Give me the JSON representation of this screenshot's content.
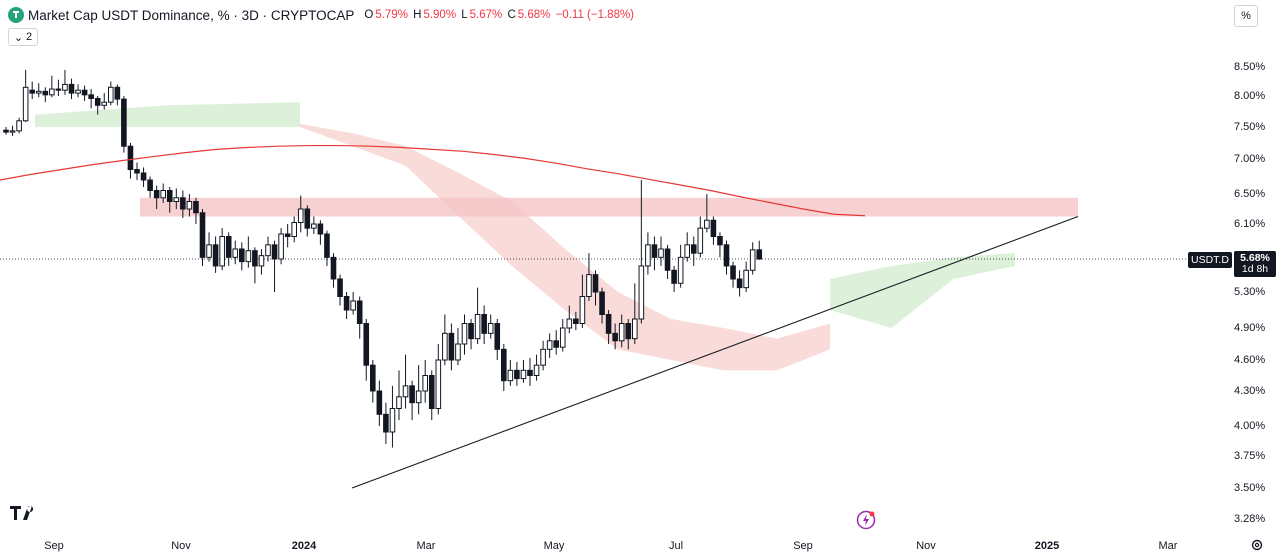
{
  "header": {
    "title": "Market Cap USDT Dominance, % · 3D · CRYPTOCAP",
    "open_label": "O",
    "open_value": "5.79%",
    "high_label": "H",
    "high_value": "5.90%",
    "low_label": "L",
    "low_value": "5.67%",
    "close_label": "C",
    "close_value": "5.68%",
    "change_value": "−0.11 (−1.88%)",
    "collapse_count": "2",
    "percent_button": "%"
  },
  "price_tag": {
    "symbol": "USDT.D",
    "value": "5.68%",
    "countdown": "1d 8h"
  },
  "colors": {
    "up": "#131722",
    "down": "#131722",
    "ma": "#e53935",
    "cloud_bear": "#f8d5d2",
    "cloud_bull": "#d7eed4",
    "zone": "#f5c6c6",
    "tag": "#131722"
  },
  "chart_data": {
    "type": "candlestick",
    "y_ticks": [
      "8.50%",
      "8.00%",
      "7.50%",
      "7.00%",
      "6.50%",
      "6.10%",
      "5.30%",
      "4.90%",
      "4.60%",
      "4.30%",
      "4.00%",
      "3.75%",
      "3.50%",
      "3.28%"
    ],
    "x_ticks": [
      {
        "label": "Sep",
        "bold": false
      },
      {
        "label": "Nov",
        "bold": false
      },
      {
        "label": "2024",
        "bold": true
      },
      {
        "label": "Mar",
        "bold": false
      },
      {
        "label": "May",
        "bold": false
      },
      {
        "label": "Jul",
        "bold": false
      },
      {
        "label": "Sep",
        "bold": false
      },
      {
        "label": "Nov",
        "bold": false
      },
      {
        "label": "2025",
        "bold": true
      },
      {
        "label": "Mar",
        "bold": false
      }
    ],
    "last_close": 5.68,
    "resistance_zone": [
      6.2,
      6.45
    ],
    "candles": [
      [
        7.45,
        7.42,
        7.5,
        7.38
      ],
      [
        7.42,
        7.44,
        7.52,
        7.36
      ],
      [
        7.44,
        7.6,
        7.65,
        7.4
      ],
      [
        7.6,
        8.15,
        8.45,
        7.58
      ],
      [
        8.1,
        8.05,
        8.25,
        7.95
      ],
      [
        8.05,
        8.08,
        8.22,
        7.98
      ],
      [
        8.08,
        8.02,
        8.15,
        7.9
      ],
      [
        8.02,
        8.12,
        8.35,
        7.98
      ],
      [
        8.12,
        8.1,
        8.28,
        8.0
      ],
      [
        8.1,
        8.2,
        8.45,
        8.02
      ],
      [
        8.2,
        8.05,
        8.3,
        7.95
      ],
      [
        8.05,
        8.1,
        8.2,
        7.98
      ],
      [
        8.1,
        8.02,
        8.18,
        7.92
      ],
      [
        8.02,
        7.96,
        8.12,
        7.8
      ],
      [
        7.96,
        7.85,
        8.0,
        7.7
      ],
      [
        7.85,
        7.9,
        8.05,
        7.78
      ],
      [
        7.9,
        8.15,
        8.25,
        7.85
      ],
      [
        8.15,
        7.95,
        8.2,
        7.85
      ],
      [
        7.95,
        7.2,
        8.0,
        7.1
      ],
      [
        7.2,
        6.85,
        7.25,
        6.72
      ],
      [
        6.85,
        6.8,
        6.95,
        6.7
      ],
      [
        6.8,
        6.7,
        6.88,
        6.6
      ],
      [
        6.7,
        6.55,
        6.75,
        6.45
      ],
      [
        6.55,
        6.45,
        6.62,
        6.3
      ],
      [
        6.45,
        6.55,
        6.65,
        6.38
      ],
      [
        6.55,
        6.4,
        6.6,
        6.25
      ],
      [
        6.4,
        6.45,
        6.58,
        6.3
      ],
      [
        6.45,
        6.3,
        6.55,
        6.18
      ],
      [
        6.3,
        6.4,
        6.5,
        6.2
      ],
      [
        6.4,
        6.25,
        6.45,
        6.1
      ],
      [
        6.25,
        5.7,
        6.3,
        5.6
      ],
      [
        5.7,
        5.85,
        6.0,
        5.65
      ],
      [
        5.85,
        5.6,
        5.95,
        5.52
      ],
      [
        5.6,
        5.95,
        6.05,
        5.55
      ],
      [
        5.95,
        5.7,
        6.0,
        5.6
      ],
      [
        5.7,
        5.8,
        5.9,
        5.62
      ],
      [
        5.8,
        5.65,
        5.88,
        5.55
      ],
      [
        5.65,
        5.78,
        5.95,
        5.58
      ],
      [
        5.78,
        5.6,
        5.82,
        5.4
      ],
      [
        5.6,
        5.72,
        5.8,
        5.5
      ],
      [
        5.72,
        5.85,
        5.95,
        5.65
      ],
      [
        5.85,
        5.68,
        5.9,
        5.3
      ],
      [
        5.68,
        5.98,
        6.05,
        5.62
      ],
      [
        5.98,
        5.95,
        6.1,
        5.82
      ],
      [
        5.95,
        6.12,
        6.2,
        5.88
      ],
      [
        6.12,
        6.3,
        6.48,
        6.0
      ],
      [
        6.3,
        6.05,
        6.35,
        5.95
      ],
      [
        6.05,
        6.1,
        6.2,
        5.98
      ],
      [
        6.1,
        5.98,
        6.15,
        5.85
      ],
      [
        5.98,
        5.7,
        6.02,
        5.6
      ],
      [
        5.7,
        5.45,
        5.75,
        5.35
      ],
      [
        5.45,
        5.25,
        5.5,
        5.15
      ],
      [
        5.25,
        5.1,
        5.3,
        5.0
      ],
      [
        5.1,
        5.2,
        5.3,
        5.05
      ],
      [
        5.2,
        4.95,
        5.25,
        4.8
      ],
      [
        4.95,
        4.55,
        5.0,
        4.4
      ],
      [
        4.55,
        4.3,
        4.6,
        4.2
      ],
      [
        4.3,
        4.1,
        4.4,
        4.0
      ],
      [
        4.1,
        3.95,
        4.2,
        3.85
      ],
      [
        3.95,
        4.15,
        4.35,
        3.82
      ],
      [
        4.15,
        4.25,
        4.5,
        4.05
      ],
      [
        4.25,
        4.35,
        4.65,
        4.15
      ],
      [
        4.35,
        4.2,
        4.4,
        4.05
      ],
      [
        4.2,
        4.3,
        4.55,
        4.1
      ],
      [
        4.3,
        4.45,
        4.6,
        4.2
      ],
      [
        4.45,
        4.15,
        4.5,
        4.05
      ],
      [
        4.15,
        4.6,
        4.75,
        4.1
      ],
      [
        4.6,
        4.85,
        5.05,
        4.55
      ],
      [
        4.85,
        4.6,
        4.95,
        4.5
      ],
      [
        4.6,
        4.75,
        4.9,
        4.55
      ],
      [
        4.75,
        4.95,
        5.05,
        4.65
      ],
      [
        4.95,
        4.8,
        5.0,
        4.7
      ],
      [
        4.8,
        5.05,
        5.35,
        4.75
      ],
      [
        5.05,
        4.85,
        5.15,
        4.75
      ],
      [
        4.85,
        4.95,
        5.05,
        4.8
      ],
      [
        4.95,
        4.7,
        5.0,
        4.6
      ],
      [
        4.7,
        4.4,
        4.75,
        4.3
      ],
      [
        4.4,
        4.5,
        4.6,
        4.35
      ],
      [
        4.5,
        4.42,
        4.58,
        4.35
      ],
      [
        4.42,
        4.5,
        4.6,
        4.38
      ],
      [
        4.5,
        4.45,
        4.62,
        4.35
      ],
      [
        4.45,
        4.55,
        4.65,
        4.4
      ],
      [
        4.55,
        4.7,
        4.78,
        4.5
      ],
      [
        4.7,
        4.78,
        4.85,
        4.62
      ],
      [
        4.78,
        4.72,
        4.88,
        4.65
      ],
      [
        4.72,
        4.9,
        5.0,
        4.68
      ],
      [
        4.9,
        5.0,
        5.15,
        4.85
      ],
      [
        5.0,
        4.95,
        5.08,
        4.88
      ],
      [
        4.95,
        5.25,
        5.5,
        4.9
      ],
      [
        5.25,
        5.5,
        5.75,
        5.2
      ],
      [
        5.5,
        5.3,
        5.55,
        5.15
      ],
      [
        5.3,
        5.05,
        5.35,
        4.95
      ],
      [
        5.05,
        4.85,
        5.1,
        4.75
      ],
      [
        4.85,
        4.78,
        4.95,
        4.7
      ],
      [
        4.78,
        4.95,
        5.05,
        4.72
      ],
      [
        4.95,
        4.8,
        5.0,
        4.7
      ],
      [
        4.8,
        5.0,
        5.4,
        4.75
      ],
      [
        5.0,
        5.6,
        6.7,
        4.95
      ],
      [
        5.6,
        5.85,
        6.0,
        5.5
      ],
      [
        5.85,
        5.7,
        5.95,
        5.55
      ],
      [
        5.7,
        5.8,
        5.95,
        5.6
      ],
      [
        5.8,
        5.55,
        5.85,
        5.45
      ],
      [
        5.55,
        5.4,
        5.6,
        5.3
      ],
      [
        5.4,
        5.7,
        5.85,
        5.35
      ],
      [
        5.7,
        5.85,
        6.0,
        5.65
      ],
      [
        5.85,
        5.75,
        5.95,
        5.6
      ],
      [
        5.75,
        6.05,
        6.2,
        5.7
      ],
      [
        6.05,
        6.15,
        6.5,
        6.0
      ],
      [
        6.15,
        5.95,
        6.2,
        5.85
      ],
      [
        5.95,
        5.85,
        6.0,
        5.7
      ],
      [
        5.85,
        5.6,
        5.9,
        5.5
      ],
      [
        5.6,
        5.45,
        5.65,
        5.35
      ],
      [
        5.45,
        5.35,
        5.55,
        5.25
      ],
      [
        5.35,
        5.55,
        5.65,
        5.3
      ],
      [
        5.55,
        5.79,
        5.88,
        5.5
      ],
      [
        5.79,
        5.68,
        5.9,
        5.67
      ]
    ],
    "ma_series": [
      6.7,
      6.78,
      6.85,
      6.92,
      6.98,
      7.04,
      7.1,
      7.15,
      7.18,
      7.2,
      7.21,
      7.21,
      7.2,
      7.18,
      7.15,
      7.12,
      7.07,
      7.01,
      6.94,
      6.86,
      6.79,
      6.71,
      6.63,
      6.55,
      6.46,
      6.38,
      6.3,
      6.23,
      6.21
    ],
    "ichimoku_bear_cloud": [
      [
        7.55,
        7.5
      ],
      [
        7.4,
        7.2
      ],
      [
        7.2,
        6.9
      ],
      [
        6.8,
        6.2
      ],
      [
        6.4,
        5.6
      ],
      [
        5.8,
        5.1
      ],
      [
        5.3,
        4.7
      ],
      [
        5.0,
        4.6
      ],
      [
        4.9,
        4.5
      ],
      [
        4.8,
        4.5
      ],
      [
        4.95,
        4.7
      ]
    ],
    "ichimoku_bull_cloud": [
      [
        7.7,
        7.5
      ],
      [
        7.85,
        7.5
      ],
      [
        7.9,
        7.5
      ],
      [
        5.45,
        5.1
      ],
      [
        5.6,
        4.9
      ],
      [
        5.7,
        5.45
      ],
      [
        5.75,
        5.6
      ]
    ],
    "trendline": [
      [
        3.5
      ],
      [
        6.2
      ]
    ]
  }
}
